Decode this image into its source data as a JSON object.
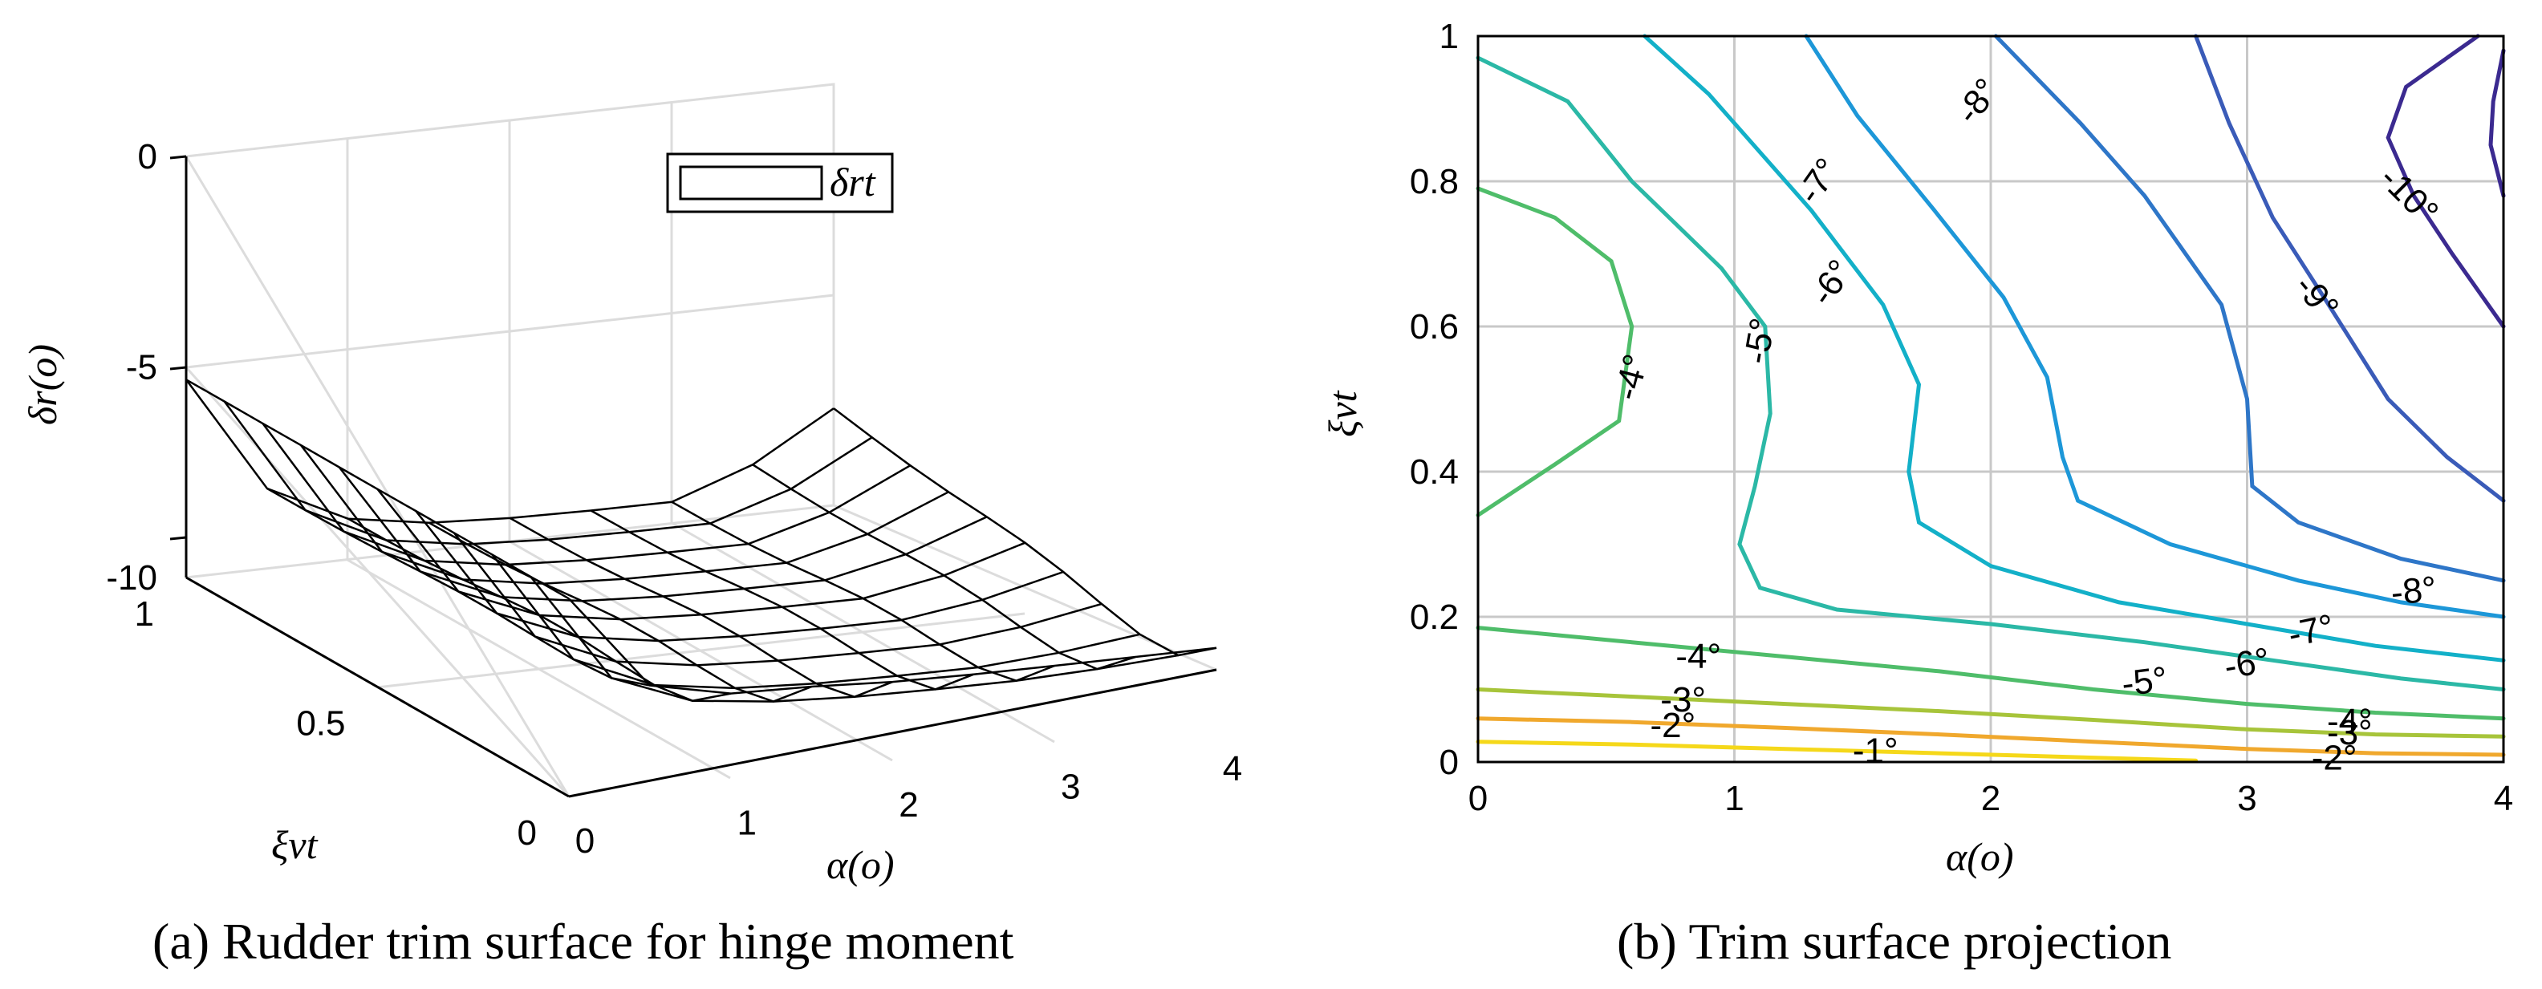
{
  "chart_data": [
    {
      "type": "surface",
      "caption": "(a) Rudder trim surface for hinge moment",
      "xlabel": "α(o)",
      "ylabel": "ξvt",
      "zlabel": "δr(o)",
      "legend": [
        "δrt"
      ],
      "legend_placement": "top-right",
      "grid": true,
      "xlim": [
        0,
        4
      ],
      "ylim": [
        0,
        1
      ],
      "zlim": [
        -10,
        0
      ],
      "x_ticks": [
        "0",
        "1",
        "2",
        "3",
        "4"
      ],
      "y_ticks": [
        "0",
        "0.5",
        "1"
      ],
      "z_ticks": [
        "0",
        "-5",
        "-10"
      ],
      "surface": {
        "alpha": [
          0,
          0.5,
          1,
          1.5,
          2,
          2.5,
          3,
          3.5,
          4
        ],
        "xi": [
          0,
          0.1,
          0.2,
          0.3,
          0.4,
          0.5,
          0.6,
          0.7,
          0.8,
          0.9,
          1.0
        ],
        "z_alpha0": -5.3
      }
    },
    {
      "type": "contour",
      "caption": "(b) Trim surface projection",
      "xlabel": "α(o)",
      "ylabel": "ξvt",
      "xlim": [
        0,
        4
      ],
      "ylim": [
        0,
        1
      ],
      "grid": true,
      "x_ticks": [
        "0",
        "1",
        "2",
        "3",
        "4"
      ],
      "y_ticks": [
        "0",
        "0.2",
        "0.4",
        "0.6",
        "0.8",
        "1"
      ],
      "contour_labels": [
        {
          "text": "-8°",
          "level": -8,
          "x": 1.95,
          "y": 0.91,
          "angle": -52
        },
        {
          "text": "-7°",
          "level": -7,
          "x": 1.33,
          "y": 0.8,
          "angle": -55
        },
        {
          "text": "-6°",
          "level": -6,
          "x": 1.38,
          "y": 0.66,
          "angle": -55
        },
        {
          "text": "-5°",
          "level": -5,
          "x": 1.1,
          "y": 0.58,
          "angle": -80
        },
        {
          "text": "-4°",
          "level": -4,
          "x": 0.6,
          "y": 0.53,
          "angle": -75
        },
        {
          "text": "-10°",
          "level": -10,
          "x": 3.63,
          "y": 0.78,
          "angle": 45
        },
        {
          "text": "-9°",
          "level": -9,
          "x": 3.27,
          "y": 0.64,
          "angle": 50
        },
        {
          "text": "-8°",
          "level": -8,
          "x": 3.65,
          "y": 0.235,
          "angle": -6
        },
        {
          "text": "-7°",
          "level": -7,
          "x": 3.25,
          "y": 0.18,
          "angle": -12
        },
        {
          "text": "-6°",
          "level": -6,
          "x": 3.0,
          "y": 0.135,
          "angle": -10
        },
        {
          "text": "-5°",
          "level": -5,
          "x": 2.6,
          "y": 0.11,
          "angle": -7
        },
        {
          "text": "-4°",
          "level": -4,
          "x": 0.86,
          "y": 0.145,
          "angle": 0
        },
        {
          "text": "-3°",
          "level": -3,
          "x": 0.8,
          "y": 0.085,
          "angle": 0
        },
        {
          "text": "-2°",
          "level": -2,
          "x": 0.76,
          "y": 0.05,
          "angle": 0
        },
        {
          "text": "-1°",
          "level": -1,
          "x": 1.55,
          "y": 0.015,
          "angle": 0
        },
        {
          "text": "-4°",
          "level": -4,
          "x": 3.4,
          "y": 0.055,
          "angle": 0
        },
        {
          "text": "-3°",
          "level": -3,
          "x": 3.4,
          "y": 0.04,
          "angle": 0
        },
        {
          "text": "-2°",
          "level": -2,
          "x": 3.34,
          "y": 0.005,
          "angle": 0
        }
      ],
      "colors": {
        "-10": "#3b2a90",
        "-9": "#3a5bb8",
        "-8": "#2e76c8",
        "-7": "#1d97d8",
        "-6": "#13b0c8",
        "-5": "#2bb8a6",
        "-4": "#4fbd6a",
        "-3": "#a7c43a",
        "-2": "#f0a82d",
        "-1": "#f5d81a"
      }
    }
  ]
}
